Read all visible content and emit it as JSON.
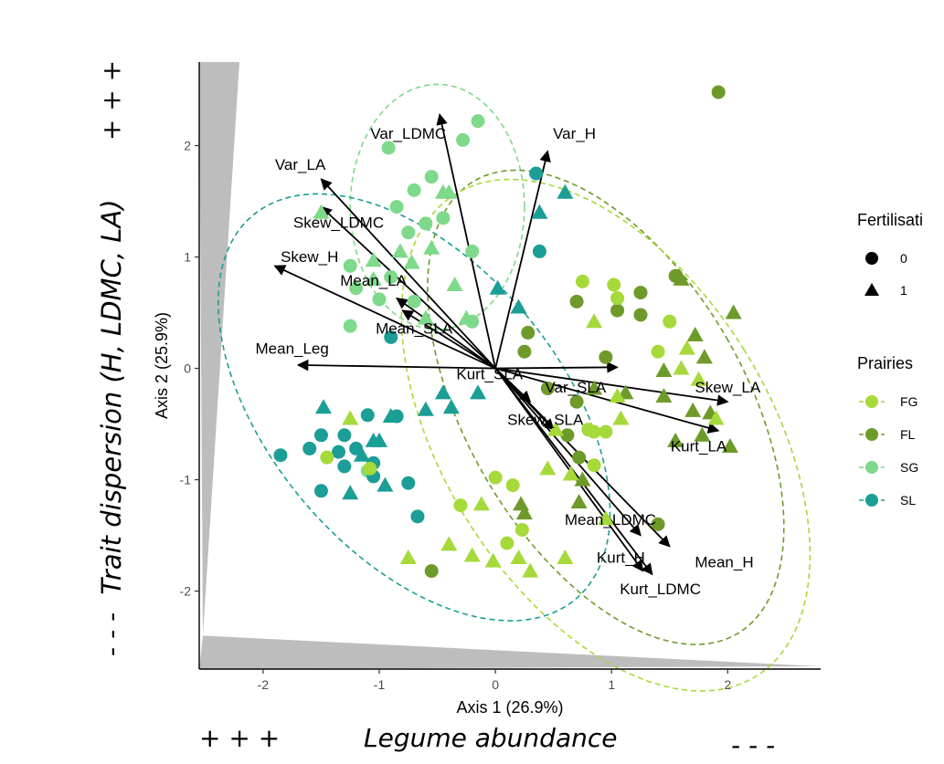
{
  "chart_data": {
    "type": "scatter",
    "subtype": "PCA biplot",
    "xlabel": "Axis 1 (26.9%)",
    "ylabel": "Axis 2 (25.9%)",
    "xlim": [
      -2.55,
      2.8
    ],
    "ylim": [
      -2.7,
      2.75
    ],
    "x_ticks": [
      -2,
      -1,
      0,
      1,
      2
    ],
    "y_ticks": [
      -2,
      -1,
      0,
      1,
      2
    ],
    "grid": false,
    "colors": {
      "FG": "#a6d93a",
      "FL": "#6e9a2a",
      "SG": "#7ed98a",
      "SL": "#1b9e96"
    },
    "legends": {
      "fertilisation": {
        "title": "Fertilisati",
        "items": [
          {
            "label": "0",
            "shape": "circle"
          },
          {
            "label": "1",
            "shape": "triangle"
          }
        ]
      },
      "prairies": {
        "title": "Prairies",
        "items": [
          "FG",
          "FL",
          "SG",
          "SL"
        ]
      }
    },
    "vectors": [
      {
        "label": "Var_LDMC",
        "x": -0.48,
        "y": 2.28
      },
      {
        "label": "Var_H",
        "x": 0.45,
        "y": 1.95
      },
      {
        "label": "Var_LA",
        "x": -1.5,
        "y": 1.7
      },
      {
        "label": "Skew_LDMC",
        "x": -1.5,
        "y": 1.45
      },
      {
        "label": "Skew_H",
        "x": -1.9,
        "y": 0.92
      },
      {
        "label": "Mean_LA",
        "x": -0.85,
        "y": 0.63
      },
      {
        "label": "Mean_SLA",
        "x": -0.8,
        "y": 0.52
      },
      {
        "label": "Mean_Leg",
        "x": -1.7,
        "y": 0.03
      },
      {
        "label": "Kurt_SLA",
        "x": 1.05,
        "y": 0.01
      },
      {
        "label": "Var_SLA",
        "x": 0.3,
        "y": -0.3
      },
      {
        "label": "Skew_LA",
        "x": 2.0,
        "y": -0.3
      },
      {
        "label": "Skew_SLA",
        "x": 0.5,
        "y": -0.55
      },
      {
        "label": "Kurt_LA",
        "x": 1.92,
        "y": -0.56
      },
      {
        "label": "Mean_LDMC",
        "x": 1.25,
        "y": -1.5
      },
      {
        "label": "Mean_H",
        "x": 1.5,
        "y": -1.6
      },
      {
        "label": "Kurt_H",
        "x": 1.27,
        "y": -1.82
      },
      {
        "label": "Kurt_LDMC",
        "x": 1.35,
        "y": -1.85
      }
    ],
    "vector_labels": [
      {
        "text": "Var_LDMC",
        "x": -0.75,
        "y": 2.1
      },
      {
        "text": "Var_H",
        "x": 0.68,
        "y": 2.1
      },
      {
        "text": "Var_LA",
        "x": -1.68,
        "y": 1.82
      },
      {
        "text": "Skew_LDMC",
        "x": -1.35,
        "y": 1.3
      },
      {
        "text": "Skew_H",
        "x": -1.6,
        "y": 0.99
      },
      {
        "text": "Mean_LA",
        "x": -1.05,
        "y": 0.78
      },
      {
        "text": "Mean_SLA",
        "x": -0.7,
        "y": 0.35
      },
      {
        "text": "Mean_Leg",
        "x": -1.75,
        "y": 0.17
      },
      {
        "text": "Kurt_SLA",
        "x": -0.05,
        "y": -0.06
      },
      {
        "text": "Var_SLA",
        "x": 0.69,
        "y": -0.18
      },
      {
        "text": "Skew_LA",
        "x": 2.0,
        "y": -0.18
      },
      {
        "text": "Skew_SLA",
        "x": 0.43,
        "y": -0.47
      },
      {
        "text": "Kurt_LA",
        "x": 1.75,
        "y": -0.71
      },
      {
        "text": "Mean_LDMC",
        "x": 0.99,
        "y": -1.37
      },
      {
        "text": "Kurt_H",
        "x": 1.08,
        "y": -1.71
      },
      {
        "text": "Mean_H",
        "x": 1.97,
        "y": -1.75
      },
      {
        "text": "Kurt_LDMC",
        "x": 1.42,
        "y": -1.99
      }
    ],
    "ellipses": [
      {
        "group": "SG",
        "cx": -0.5,
        "cy": 1.45,
        "rx": 0.75,
        "ry": 1.1,
        "angle": 0
      },
      {
        "group": "SL",
        "cx": -0.7,
        "cy": -0.35,
        "rx": 1.25,
        "ry": 2.25,
        "angle": 40
      },
      {
        "group": "FL",
        "cx": 0.95,
        "cy": -0.35,
        "rx": 1.2,
        "ry": 2.35,
        "angle": 30
      },
      {
        "group": "FG",
        "cx": 0.95,
        "cy": -0.6,
        "rx": 1.4,
        "ry": 2.55,
        "angle": 32
      }
    ],
    "points": [
      {
        "group": "SG",
        "shape": "circle",
        "x": -0.92,
        "y": 1.98
      },
      {
        "group": "SG",
        "shape": "circle",
        "x": -0.15,
        "y": 2.22
      },
      {
        "group": "SG",
        "shape": "circle",
        "x": -0.28,
        "y": 2.05
      },
      {
        "group": "SG",
        "shape": "circle",
        "x": -0.55,
        "y": 1.72
      },
      {
        "group": "SG",
        "shape": "circle",
        "x": -0.7,
        "y": 1.6
      },
      {
        "group": "SG",
        "shape": "circle",
        "x": -0.85,
        "y": 1.45
      },
      {
        "group": "SG",
        "shape": "circle",
        "x": -0.6,
        "y": 1.3
      },
      {
        "group": "SG",
        "shape": "circle",
        "x": -0.75,
        "y": 1.22
      },
      {
        "group": "SG",
        "shape": "circle",
        "x": -0.45,
        "y": 1.35
      },
      {
        "group": "SG",
        "shape": "circle",
        "x": -0.2,
        "y": 1.05
      },
      {
        "group": "SG",
        "shape": "circle",
        "x": -1.25,
        "y": 0.92
      },
      {
        "group": "SG",
        "shape": "circle",
        "x": -1.2,
        "y": 0.72
      },
      {
        "group": "SG",
        "shape": "circle",
        "x": -0.9,
        "y": 0.82
      },
      {
        "group": "SG",
        "shape": "circle",
        "x": -1.0,
        "y": 0.62
      },
      {
        "group": "SG",
        "shape": "circle",
        "x": -0.7,
        "y": 0.6
      },
      {
        "group": "SG",
        "shape": "circle",
        "x": -1.25,
        "y": 0.38
      },
      {
        "group": "SG",
        "shape": "circle",
        "x": -0.2,
        "y": 0.42
      },
      {
        "group": "SG",
        "shape": "circle",
        "x": -1.1,
        "y": -0.92
      },
      {
        "group": "SG",
        "shape": "triangle",
        "x": -0.4,
        "y": 1.58
      },
      {
        "group": "SG",
        "shape": "triangle",
        "x": -0.45,
        "y": 1.58
      },
      {
        "group": "SG",
        "shape": "triangle",
        "x": -0.82,
        "y": 1.05
      },
      {
        "group": "SG",
        "shape": "triangle",
        "x": -0.72,
        "y": 0.95
      },
      {
        "group": "SG",
        "shape": "triangle",
        "x": -1.05,
        "y": 0.97
      },
      {
        "group": "SG",
        "shape": "triangle",
        "x": -0.55,
        "y": 1.08
      },
      {
        "group": "SG",
        "shape": "triangle",
        "x": -0.35,
        "y": 0.75
      },
      {
        "group": "SG",
        "shape": "triangle",
        "x": -1.05,
        "y": 0.8
      },
      {
        "group": "SG",
        "shape": "triangle",
        "x": -1.5,
        "y": 1.4
      },
      {
        "group": "SG",
        "shape": "triangle",
        "x": -0.6,
        "y": 0.45
      },
      {
        "group": "SG",
        "shape": "triangle",
        "x": -0.25,
        "y": 0.45
      },
      {
        "group": "SL",
        "shape": "circle",
        "x": 0.35,
        "y": 1.75
      },
      {
        "group": "SL",
        "shape": "circle",
        "x": 0.38,
        "y": 1.05
      },
      {
        "group": "SL",
        "shape": "circle",
        "x": -0.9,
        "y": 0.28
      },
      {
        "group": "SL",
        "shape": "circle",
        "x": -1.1,
        "y": -0.42
      },
      {
        "group": "SL",
        "shape": "circle",
        "x": -0.85,
        "y": -0.43
      },
      {
        "group": "SL",
        "shape": "circle",
        "x": -1.5,
        "y": -0.6
      },
      {
        "group": "SL",
        "shape": "circle",
        "x": -1.3,
        "y": -0.6
      },
      {
        "group": "SL",
        "shape": "circle",
        "x": -1.6,
        "y": -0.72
      },
      {
        "group": "SL",
        "shape": "circle",
        "x": -1.85,
        "y": -0.78
      },
      {
        "group": "SL",
        "shape": "circle",
        "x": -1.35,
        "y": -0.75
      },
      {
        "group": "SL",
        "shape": "circle",
        "x": -1.2,
        "y": -0.72
      },
      {
        "group": "SL",
        "shape": "circle",
        "x": -1.05,
        "y": -0.85
      },
      {
        "group": "SL",
        "shape": "circle",
        "x": -1.3,
        "y": -0.88
      },
      {
        "group": "SL",
        "shape": "circle",
        "x": -1.5,
        "y": -1.1
      },
      {
        "group": "SL",
        "shape": "circle",
        "x": -1.05,
        "y": -0.97
      },
      {
        "group": "SL",
        "shape": "circle",
        "x": -0.75,
        "y": -1.03
      },
      {
        "group": "SL",
        "shape": "circle",
        "x": -0.67,
        "y": -1.33
      },
      {
        "group": "SL",
        "shape": "circle",
        "x": -0.85,
        "y": -0.43
      },
      {
        "group": "SL",
        "shape": "triangle",
        "x": 0.6,
        "y": 1.58
      },
      {
        "group": "SL",
        "shape": "triangle",
        "x": 0.38,
        "y": 1.4
      },
      {
        "group": "SL",
        "shape": "triangle",
        "x": 0.02,
        "y": 0.72
      },
      {
        "group": "SL",
        "shape": "triangle",
        "x": 0.2,
        "y": 0.55
      },
      {
        "group": "SL",
        "shape": "triangle",
        "x": -1.48,
        "y": -0.35
      },
      {
        "group": "SL",
        "shape": "triangle",
        "x": -1.05,
        "y": -0.65
      },
      {
        "group": "SL",
        "shape": "triangle",
        "x": -0.9,
        "y": -0.43
      },
      {
        "group": "SL",
        "shape": "triangle",
        "x": -0.6,
        "y": -0.37
      },
      {
        "group": "SL",
        "shape": "triangle",
        "x": -0.38,
        "y": -0.35
      },
      {
        "group": "SL",
        "shape": "triangle",
        "x": -1.15,
        "y": -0.78
      },
      {
        "group": "SL",
        "shape": "triangle",
        "x": -1.0,
        "y": -0.65
      },
      {
        "group": "SL",
        "shape": "triangle",
        "x": -0.95,
        "y": -1.05
      },
      {
        "group": "SL",
        "shape": "triangle",
        "x": -1.25,
        "y": -1.12
      },
      {
        "group": "SL",
        "shape": "triangle",
        "x": -0.45,
        "y": -0.22
      },
      {
        "group": "SL",
        "shape": "triangle",
        "x": -0.15,
        "y": -0.22
      },
      {
        "group": "FL",
        "shape": "circle",
        "x": 0.28,
        "y": 0.32
      },
      {
        "group": "FL",
        "shape": "circle",
        "x": 0.25,
        "y": 0.15
      },
      {
        "group": "FL",
        "shape": "circle",
        "x": 0.7,
        "y": 0.6
      },
      {
        "group": "FL",
        "shape": "circle",
        "x": 1.25,
        "y": 0.68
      },
      {
        "group": "FL",
        "shape": "circle",
        "x": 1.05,
        "y": 0.52
      },
      {
        "group": "FL",
        "shape": "circle",
        "x": 1.25,
        "y": 0.48
      },
      {
        "group": "FL",
        "shape": "circle",
        "x": 0.95,
        "y": 0.1
      },
      {
        "group": "FL",
        "shape": "circle",
        "x": 0.45,
        "y": -0.18
      },
      {
        "group": "FL",
        "shape": "circle",
        "x": 0.7,
        "y": -0.3
      },
      {
        "group": "FL",
        "shape": "circle",
        "x": 0.62,
        "y": -0.6
      },
      {
        "group": "FL",
        "shape": "circle",
        "x": 0.72,
        "y": -0.8
      },
      {
        "group": "FL",
        "shape": "circle",
        "x": 1.55,
        "y": 0.83
      },
      {
        "group": "FL",
        "shape": "circle",
        "x": 1.4,
        "y": -1.4
      },
      {
        "group": "FL",
        "shape": "circle",
        "x": -0.55,
        "y": -1.82
      },
      {
        "group": "FL",
        "shape": "circle",
        "x": 1.92,
        "y": 2.48
      },
      {
        "group": "FL",
        "shape": "triangle",
        "x": 1.6,
        "y": 0.8
      },
      {
        "group": "FL",
        "shape": "triangle",
        "x": 1.72,
        "y": 0.3
      },
      {
        "group": "FL",
        "shape": "triangle",
        "x": 2.05,
        "y": 0.5
      },
      {
        "group": "FL",
        "shape": "triangle",
        "x": 1.8,
        "y": 0.1
      },
      {
        "group": "FL",
        "shape": "triangle",
        "x": 1.45,
        "y": -0.02
      },
      {
        "group": "FL",
        "shape": "triangle",
        "x": 1.7,
        "y": -0.38
      },
      {
        "group": "FL",
        "shape": "triangle",
        "x": 1.85,
        "y": -0.4
      },
      {
        "group": "FL",
        "shape": "triangle",
        "x": 1.78,
        "y": -0.6
      },
      {
        "group": "FL",
        "shape": "triangle",
        "x": 2.02,
        "y": -0.7
      },
      {
        "group": "FL",
        "shape": "triangle",
        "x": 1.55,
        "y": -0.65
      },
      {
        "group": "FL",
        "shape": "triangle",
        "x": 0.85,
        "y": -0.18
      },
      {
        "group": "FL",
        "shape": "triangle",
        "x": 1.12,
        "y": -0.22
      },
      {
        "group": "FL",
        "shape": "triangle",
        "x": 1.45,
        "y": -0.25
      },
      {
        "group": "FL",
        "shape": "triangle",
        "x": 0.75,
        "y": -1.0
      },
      {
        "group": "FL",
        "shape": "triangle",
        "x": 0.72,
        "y": -1.2
      },
      {
        "group": "FL",
        "shape": "triangle",
        "x": 0.22,
        "y": -1.22
      },
      {
        "group": "FL",
        "shape": "triangle",
        "x": 0.25,
        "y": -1.3
      },
      {
        "group": "FG",
        "shape": "circle",
        "x": 0.75,
        "y": 0.78
      },
      {
        "group": "FG",
        "shape": "circle",
        "x": 1.02,
        "y": 0.75
      },
      {
        "group": "FG",
        "shape": "circle",
        "x": 1.05,
        "y": 0.63
      },
      {
        "group": "FG",
        "shape": "circle",
        "x": 1.5,
        "y": 0.42
      },
      {
        "group": "FG",
        "shape": "circle",
        "x": 1.4,
        "y": 0.15
      },
      {
        "group": "FG",
        "shape": "circle",
        "x": 0.8,
        "y": -0.55
      },
      {
        "group": "FG",
        "shape": "circle",
        "x": 0.95,
        "y": -0.57
      },
      {
        "group": "FG",
        "shape": "circle",
        "x": 0.85,
        "y": -0.57
      },
      {
        "group": "FG",
        "shape": "circle",
        "x": 0.85,
        "y": -0.87
      },
      {
        "group": "FG",
        "shape": "circle",
        "x": 0.0,
        "y": -0.98
      },
      {
        "group": "FG",
        "shape": "circle",
        "x": 0.15,
        "y": -1.05
      },
      {
        "group": "FG",
        "shape": "circle",
        "x": -0.3,
        "y": -1.23
      },
      {
        "group": "FG",
        "shape": "circle",
        "x": 0.23,
        "y": -1.45
      },
      {
        "group": "FG",
        "shape": "circle",
        "x": 0.1,
        "y": -1.57
      },
      {
        "group": "FG",
        "shape": "circle",
        "x": -1.45,
        "y": -0.8
      },
      {
        "group": "FG",
        "shape": "circle",
        "x": -1.08,
        "y": -0.9
      },
      {
        "group": "FG",
        "shape": "triangle",
        "x": 0.85,
        "y": 0.42
      },
      {
        "group": "FG",
        "shape": "triangle",
        "x": 1.65,
        "y": 0.18
      },
      {
        "group": "FG",
        "shape": "triangle",
        "x": 1.6,
        "y": 0.0
      },
      {
        "group": "FG",
        "shape": "triangle",
        "x": 1.75,
        "y": -0.1
      },
      {
        "group": "FG",
        "shape": "triangle",
        "x": 1.9,
        "y": -0.45
      },
      {
        "group": "FG",
        "shape": "triangle",
        "x": 1.05,
        "y": -0.25
      },
      {
        "group": "FG",
        "shape": "triangle",
        "x": 1.08,
        "y": -0.45
      },
      {
        "group": "FG",
        "shape": "triangle",
        "x": 0.45,
        "y": -0.9
      },
      {
        "group": "FG",
        "shape": "triangle",
        "x": 0.65,
        "y": -0.95
      },
      {
        "group": "FG",
        "shape": "triangle",
        "x": 0.52,
        "y": -0.55
      },
      {
        "group": "FG",
        "shape": "triangle",
        "x": -0.12,
        "y": -1.22
      },
      {
        "group": "FG",
        "shape": "triangle",
        "x": 0.95,
        "y": -1.35
      },
      {
        "group": "FG",
        "shape": "triangle",
        "x": 0.2,
        "y": -1.7
      },
      {
        "group": "FG",
        "shape": "triangle",
        "x": -0.2,
        "y": -1.68
      },
      {
        "group": "FG",
        "shape": "triangle",
        "x": 0.3,
        "y": -1.82
      },
      {
        "group": "FG",
        "shape": "triangle",
        "x": -0.75,
        "y": -1.7
      },
      {
        "group": "FG",
        "shape": "triangle",
        "x": -0.02,
        "y": -1.73
      },
      {
        "group": "FG",
        "shape": "triangle",
        "x": 0.6,
        "y": -1.7
      },
      {
        "group": "FG",
        "shape": "triangle",
        "x": -0.4,
        "y": -1.58
      },
      {
        "group": "FG",
        "shape": "triangle",
        "x": -1.25,
        "y": -0.45
      }
    ]
  },
  "annotations": {
    "left_axis_label": "Trait dispersion (H, LDMC, LA)",
    "left_axis_top": "+ + +",
    "left_axis_bottom": "- - -",
    "bottom_axis_label": "Legume abundance",
    "bottom_axis_left": "+ + +",
    "bottom_axis_right": "- - -"
  }
}
